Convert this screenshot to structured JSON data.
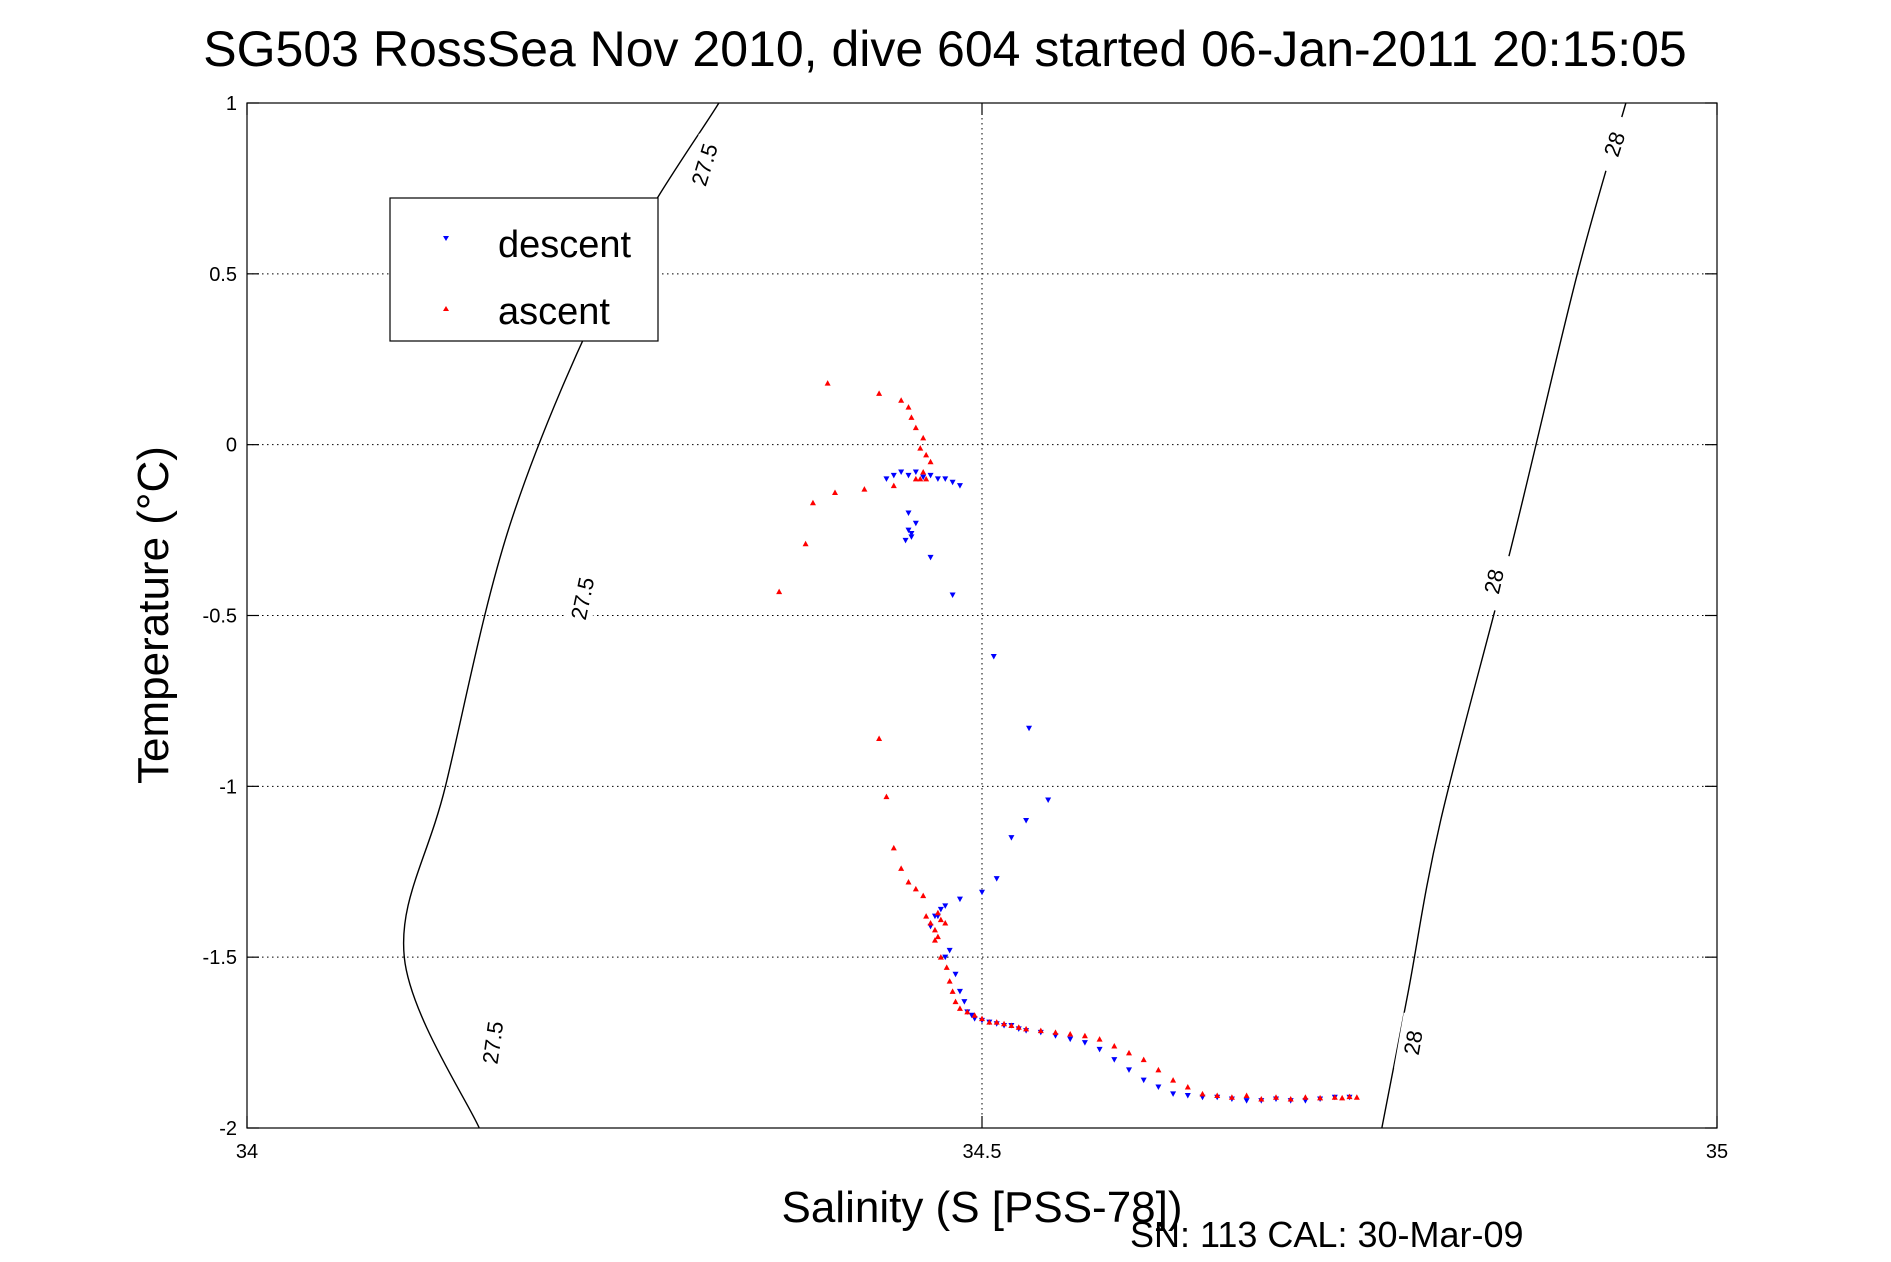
{
  "chart_data": {
    "type": "scatter",
    "title": "SG503 RossSea Nov 2010, dive 604 started 06-Jan-2011 20:15:05",
    "xlabel": "Salinity (S [PSS-78])",
    "ylabel": "Temperature (°C)",
    "xlim": [
      34,
      35
    ],
    "ylim": [
      -2,
      1
    ],
    "xticks": [
      "34",
      "34.5",
      "35"
    ],
    "yticks": [
      "1",
      "0.5",
      "0",
      "-0.5",
      "-1",
      "-1.5",
      "-2"
    ],
    "xtick_values": [
      34,
      34.5,
      35
    ],
    "ytick_values": [
      1,
      0.5,
      0,
      -0.5,
      -1,
      -1.5,
      -2
    ],
    "grid": true,
    "legend_position": "top-left",
    "footer": "SN: 113  CAL: 30-Mar-09",
    "colors": {
      "descent": "#0000ff",
      "ascent": "#ff0000",
      "contour": "#000000"
    },
    "contours": [
      {
        "label": "27.5",
        "points": [
          [
            34.321,
            1.0
          ],
          [
            34.25,
            0.5
          ],
          [
            34.18,
            -0.22
          ],
          [
            34.135,
            -1.0
          ],
          [
            34.107,
            -1.5
          ],
          [
            34.158,
            -2.0
          ]
        ]
      },
      {
        "label": "28",
        "points": [
          [
            34.938,
            1.0
          ],
          [
            34.905,
            0.5
          ],
          [
            34.86,
            -0.3
          ],
          [
            34.812,
            -1.1
          ],
          [
            34.79,
            -1.6
          ],
          [
            34.772,
            -2.0
          ]
        ]
      }
    ],
    "contour_labels": [
      {
        "text": "27.5",
        "x": 34.311,
        "y": 0.82,
        "angle": -73
      },
      {
        "text": "27.5",
        "x": 34.228,
        "y": -0.45,
        "angle": -78
      },
      {
        "text": "27.5",
        "x": 34.167,
        "y": -1.75,
        "angle": -82
      },
      {
        "text": "28",
        "x": 34.93,
        "y": 0.88,
        "angle": -72
      },
      {
        "text": "28",
        "x": 34.848,
        "y": -0.4,
        "angle": -77
      },
      {
        "text": "28",
        "x": 34.793,
        "y": -1.75,
        "angle": -80
      }
    ],
    "series": [
      {
        "name": "descent",
        "marker": "triangle-down",
        "x": [
          34.485,
          34.48,
          34.47,
          34.46,
          34.45,
          34.44,
          34.435,
          34.445,
          34.455,
          34.465,
          34.475,
          34.45,
          34.452,
          34.455,
          34.45,
          34.448,
          34.452,
          34.465,
          34.48,
          34.508,
          34.532,
          34.545,
          34.53,
          34.52,
          34.51,
          34.5,
          34.485,
          34.475,
          34.47,
          34.465,
          34.468,
          34.472,
          34.475,
          34.478,
          34.482,
          34.485,
          34.488,
          34.49,
          34.493,
          34.495,
          34.5,
          34.505,
          34.51,
          34.515,
          34.52,
          34.525,
          34.53,
          34.54,
          34.55,
          34.56,
          34.57,
          34.58,
          34.59,
          34.6,
          34.61,
          34.62,
          34.63,
          34.64,
          34.65,
          34.66,
          34.67,
          34.68,
          34.69,
          34.7,
          34.71,
          34.72,
          34.73,
          34.74,
          34.75
        ],
        "y": [
          -0.12,
          -0.11,
          -0.1,
          -0.095,
          -0.09,
          -0.09,
          -0.1,
          -0.08,
          -0.08,
          -0.09,
          -0.1,
          -0.25,
          -0.27,
          -0.23,
          -0.2,
          -0.28,
          -0.26,
          -0.33,
          -0.44,
          -0.62,
          -0.83,
          -1.04,
          -1.1,
          -1.15,
          -1.27,
          -1.31,
          -1.33,
          -1.35,
          -1.38,
          -1.41,
          -1.38,
          -1.36,
          -1.5,
          -1.48,
          -1.55,
          -1.6,
          -1.63,
          -1.66,
          -1.67,
          -1.68,
          -1.685,
          -1.69,
          -1.695,
          -1.7,
          -1.7,
          -1.71,
          -1.715,
          -1.72,
          -1.73,
          -1.74,
          -1.75,
          -1.77,
          -1.8,
          -1.83,
          -1.86,
          -1.88,
          -1.9,
          -1.905,
          -1.91,
          -1.91,
          -1.915,
          -1.92,
          -1.92,
          -1.915,
          -1.92,
          -1.92,
          -1.915,
          -1.91,
          -1.91
        ]
      },
      {
        "name": "ascent",
        "marker": "triangle-up",
        "x": [
          34.395,
          34.43,
          34.445,
          34.45,
          34.452,
          34.455,
          34.46,
          34.458,
          34.462,
          34.465,
          34.46,
          34.458,
          34.462,
          34.455,
          34.44,
          34.42,
          34.4,
          34.385,
          34.38,
          34.362,
          34.43,
          34.435,
          34.44,
          34.445,
          34.45,
          34.455,
          34.46,
          34.462,
          34.465,
          34.468,
          34.47,
          34.472,
          34.475,
          34.47,
          34.468,
          34.472,
          34.476,
          34.478,
          34.48,
          34.482,
          34.485,
          34.49,
          34.495,
          34.5,
          34.505,
          34.51,
          34.515,
          34.52,
          34.525,
          34.53,
          34.54,
          34.55,
          34.56,
          34.57,
          34.58,
          34.59,
          34.6,
          34.61,
          34.62,
          34.63,
          34.64,
          34.65,
          34.66,
          34.67,
          34.68,
          34.69,
          34.7,
          34.71,
          34.72,
          34.73,
          34.74,
          34.75,
          34.755,
          34.745
        ],
        "y": [
          0.18,
          0.15,
          0.13,
          0.11,
          0.08,
          0.05,
          0.02,
          -0.01,
          -0.03,
          -0.05,
          -0.08,
          -0.1,
          -0.1,
          -0.1,
          -0.12,
          -0.13,
          -0.14,
          -0.17,
          -0.29,
          -0.43,
          -0.86,
          -1.03,
          -1.18,
          -1.24,
          -1.28,
          -1.3,
          -1.32,
          -1.38,
          -1.4,
          -1.42,
          -1.44,
          -1.39,
          -1.4,
          -1.37,
          -1.45,
          -1.5,
          -1.53,
          -1.57,
          -1.6,
          -1.63,
          -1.65,
          -1.66,
          -1.67,
          -1.68,
          -1.69,
          -1.69,
          -1.695,
          -1.7,
          -1.705,
          -1.71,
          -1.715,
          -1.72,
          -1.725,
          -1.73,
          -1.74,
          -1.76,
          -1.78,
          -1.8,
          -1.83,
          -1.86,
          -1.88,
          -1.9,
          -1.905,
          -1.91,
          -1.905,
          -1.915,
          -1.91,
          -1.915,
          -1.91,
          -1.912,
          -1.91,
          -1.908,
          -1.91,
          -1.912
        ]
      }
    ]
  }
}
